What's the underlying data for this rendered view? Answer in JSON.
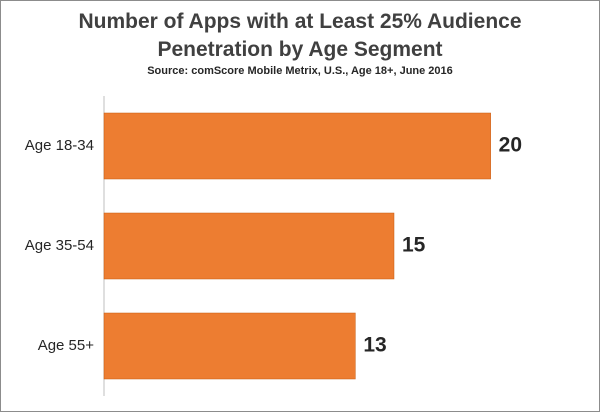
{
  "chart_data": {
    "type": "bar",
    "orientation": "horizontal",
    "title_lines": [
      "Number of Apps with at Least 25% Audience",
      "Penetration by Age Segment"
    ],
    "subtitle": "Source: comScore Mobile Metrix, U.S., Age 18+, June 2016",
    "categories": [
      "Age 18-34",
      "Age 35-54",
      "Age 55+"
    ],
    "values": [
      20,
      15,
      13
    ],
    "xlim": [
      0,
      21
    ],
    "grid": false,
    "legend": "none",
    "bar_color": "#ed7d31",
    "axis_color": "#bfbfbf"
  }
}
